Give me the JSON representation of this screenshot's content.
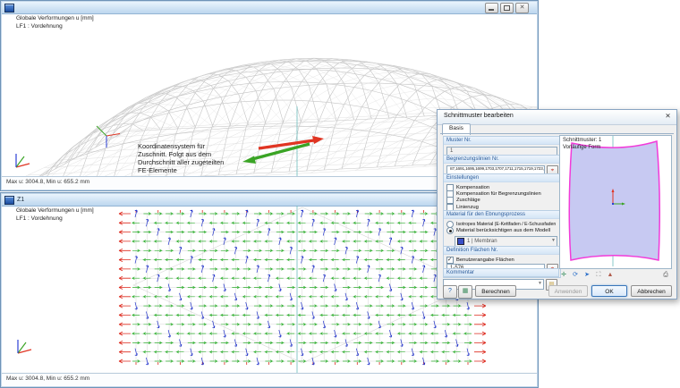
{
  "colors": {
    "x_axis_red": "#e03422",
    "y_axis_green": "#3aa425",
    "z_axis_blue": "#2b3fd6",
    "pattern_outline": "#f23bd9",
    "pattern_fill": "#c7c9f2",
    "membran_swatch": "#3a50c8",
    "section_line_teal": "#58b0b0"
  },
  "windows": {
    "top": {
      "result_label": "Globale Verformungen u [mm]\nLF1 : Vordehnung",
      "annotation": "Koordinatensystem für Zuschnitt. Folgt aus dem Durchschnitt aller zugeteilten FE-Elemente",
      "status": "Max u: 3004.8, Min u: 655.2 mm"
    },
    "bottom": {
      "title": "Z1",
      "result_label": "Globale Verformungen u [mm]\nLF1 : Vordehnung",
      "status": "Max u: 3004.8, Min u: 655.2 mm"
    }
  },
  "dialog": {
    "title": "Schnittmuster bearbeiten",
    "close": "✕",
    "tab": "Basis",
    "muster": {
      "label": "Muster Nr.",
      "value": "1"
    },
    "lines": {
      "label": "Begrenzungslinien Nr.",
      "value": "87,1691,1695,1699,1703,1707,1711,1715,1719,1723,1725,1727"
    },
    "settings": {
      "label": "Einstellungen",
      "items": [
        "Kompensation",
        "Kompensation für Begrenzungslinien",
        "Zuschläge",
        "Linienzug"
      ]
    },
    "material": {
      "label": "Material für den Ebnungsprozess",
      "radio_isotropic": "Isotropes Material (E-Kettfaden / E-Schussfaden = 1, ν = 0)",
      "radio_model": "Material berücksichtigen aus dem Modell",
      "value": "1 | Membran"
    },
    "surfaces": {
      "label": "Definition Flächen Nr.",
      "checkbox": "Benutzerangabe Flächen",
      "value": "1-576"
    },
    "comment": {
      "label": "Kommentar",
      "value": ""
    },
    "preview": {
      "header": "Schnittmuster: 1\nVorläufige Form"
    },
    "buttons": {
      "calc": "Berechnen",
      "apply": "Anwenden",
      "ok": "OK",
      "cancel": "Abbrechen"
    }
  }
}
